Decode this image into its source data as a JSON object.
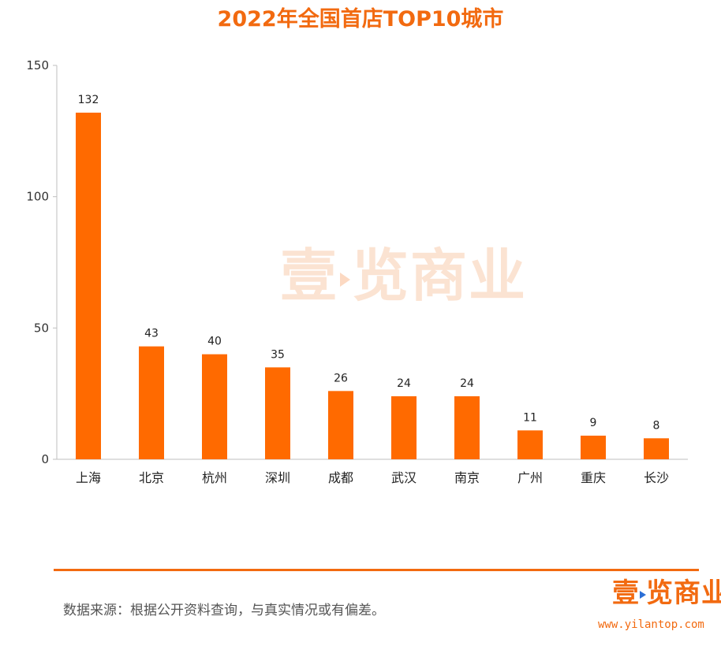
{
  "title": "2022年全国首店TOP10城市",
  "chart_data": {
    "type": "bar",
    "categories": [
      "上海",
      "北京",
      "杭州",
      "深圳",
      "成都",
      "武汉",
      "南京",
      "广州",
      "重庆",
      "长沙"
    ],
    "values": [
      132,
      43,
      40,
      35,
      26,
      24,
      24,
      11,
      9,
      8
    ],
    "yticks": [
      0,
      50,
      100,
      150
    ],
    "ylim": [
      0,
      150
    ],
    "bar_color": "#ff6a00",
    "grid": false,
    "legend": "none"
  },
  "watermark": {
    "text_before": "壹",
    "text_after": "览商业"
  },
  "footer": {
    "source": "数据来源：根据公开资料查询，与真实情况或有偏差。",
    "logo_before": "壹",
    "logo_after": "览商业",
    "url": "www.yilantop.com"
  },
  "colors": {
    "accent": "#f26a10",
    "bar": "#ff6a00"
  }
}
